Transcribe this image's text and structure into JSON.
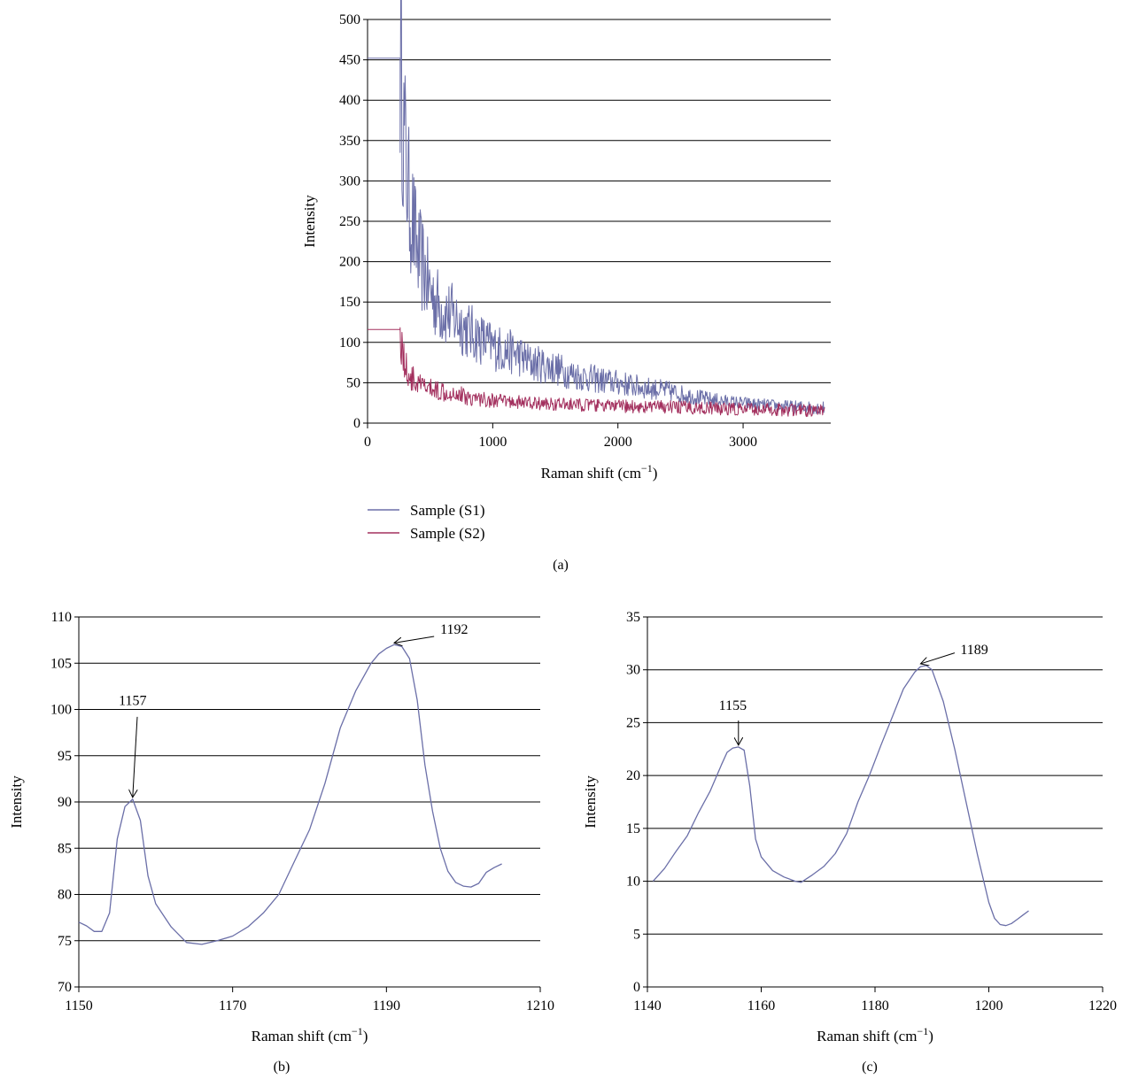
{
  "chart_data": [
    {
      "id": "a",
      "type": "line",
      "panel_label": "(a)",
      "xlabel": "Raman shift (cm",
      "xlabel_sup": "−1",
      "xlabel_suffix": ")",
      "ylabel": "Intensity",
      "xlim": [
        0,
        3700
      ],
      "ylim": [
        0,
        500
      ],
      "xticks": [
        0,
        1000,
        2000,
        3000
      ],
      "yticks": [
        0,
        50,
        100,
        150,
        200,
        250,
        300,
        350,
        400,
        450,
        500
      ],
      "grid": true,
      "legend_position": "below",
      "series": [
        {
          "name": "Sample (S1)",
          "color": "#6b6fa8",
          "x": [
            0,
            240,
            260,
            275,
            290,
            310,
            330,
            360,
            400,
            450,
            500,
            550,
            600,
            700,
            800,
            900,
            1000,
            1100,
            1200,
            1300,
            1400,
            1500,
            1600,
            1700,
            1800,
            1900,
            2000,
            2100,
            2200,
            2300,
            2400,
            2500,
            2600,
            2700,
            2800,
            2900,
            3000,
            3100,
            3200,
            3300,
            3400,
            3500,
            3600,
            3650
          ],
          "y": [
            452,
            452,
            452,
            410,
            360,
            320,
            280,
            250,
            210,
            190,
            165,
            150,
            140,
            130,
            115,
            105,
            95,
            90,
            85,
            75,
            72,
            68,
            62,
            58,
            55,
            52,
            50,
            47,
            44,
            42,
            40,
            36,
            33,
            30,
            28,
            26,
            25,
            23,
            22,
            21,
            20,
            20,
            19,
            19
          ]
        },
        {
          "name": "Sample (S2)",
          "color": "#a3305e",
          "x": [
            0,
            240,
            260,
            280,
            300,
            350,
            400,
            500,
            600,
            700,
            800,
            900,
            1000,
            1200,
            1400,
            1600,
            1800,
            2000,
            2200,
            2400,
            2600,
            2800,
            3000,
            3200,
            3400,
            3600,
            3650
          ],
          "y": [
            116,
            116,
            116,
            90,
            70,
            55,
            48,
            42,
            40,
            38,
            32,
            30,
            28,
            26,
            24,
            23,
            22,
            21,
            20,
            20,
            19,
            18,
            17,
            17,
            16,
            15,
            15
          ]
        }
      ]
    },
    {
      "id": "b",
      "type": "line",
      "panel_label": "(b)",
      "xlabel": "Raman shift (cm",
      "xlabel_sup": "−1",
      "xlabel_suffix": ")",
      "ylabel": "Intensity",
      "xlim": [
        1150,
        1210
      ],
      "ylim": [
        70,
        110
      ],
      "xticks": [
        1150,
        1170,
        1190,
        1210
      ],
      "yticks": [
        70,
        75,
        80,
        85,
        90,
        95,
        100,
        105,
        110
      ],
      "grid": true,
      "series": [
        {
          "color": "#6b6fa8",
          "x": [
            1150,
            1151,
            1152,
            1153,
            1154,
            1155,
            1156,
            1157,
            1158,
            1159,
            1160,
            1162,
            1164,
            1166,
            1168,
            1170,
            1172,
            1174,
            1176,
            1178,
            1180,
            1182,
            1184,
            1186,
            1188,
            1189,
            1190,
            1191,
            1192,
            1193,
            1194,
            1195,
            1196,
            1197,
            1198,
            1199,
            1200,
            1201,
            1202,
            1203,
            1204,
            1205
          ],
          "y": [
            77,
            76.6,
            76,
            76,
            78,
            86,
            89.5,
            90.3,
            88,
            82,
            79,
            76.5,
            74.8,
            74.6,
            75,
            75.5,
            76.5,
            78,
            80,
            83.5,
            87,
            92,
            98,
            102,
            105,
            106,
            106.6,
            107,
            106.8,
            105.5,
            101,
            94,
            89,
            85,
            82.5,
            81.3,
            80.9,
            80.8,
            81.2,
            82.4,
            82.9,
            83.3
          ]
        }
      ],
      "annotations": [
        {
          "text": "1157",
          "x": 1157,
          "y": 90.3
        },
        {
          "text": "1192",
          "x": 1191,
          "y": 107
        }
      ]
    },
    {
      "id": "c",
      "type": "line",
      "panel_label": "(c)",
      "xlabel": "Raman shift (cm",
      "xlabel_sup": "−1",
      "xlabel_suffix": ")",
      "ylabel": "Intensity",
      "xlim": [
        1140,
        1220
      ],
      "ylim": [
        0,
        35
      ],
      "xticks": [
        1140,
        1160,
        1180,
        1200,
        1220
      ],
      "yticks": [
        0,
        5,
        10,
        15,
        20,
        25,
        30,
        35
      ],
      "grid": true,
      "series": [
        {
          "color": "#6b6fa8",
          "x": [
            1141,
            1143,
            1145,
            1147,
            1149,
            1151,
            1153,
            1154,
            1155,
            1156,
            1157,
            1158,
            1159,
            1160,
            1162,
            1164,
            1166,
            1167,
            1169,
            1171,
            1173,
            1175,
            1177,
            1179,
            1181,
            1183,
            1185,
            1187,
            1188,
            1189,
            1190,
            1192,
            1194,
            1196,
            1198,
            1200,
            1201,
            1202,
            1203,
            1204,
            1205,
            1206,
            1207
          ],
          "y": [
            10,
            11.2,
            12.8,
            14.3,
            16.5,
            18.5,
            21,
            22.2,
            22.6,
            22.7,
            22.4,
            19,
            14,
            12.3,
            11,
            10.4,
            10,
            9.9,
            10.6,
            11.4,
            12.6,
            14.5,
            17.5,
            20,
            22.8,
            25.5,
            28.2,
            29.8,
            30.3,
            30.4,
            30,
            27,
            22.5,
            17.5,
            12.5,
            8,
            6.5,
            5.9,
            5.8,
            6,
            6.4,
            6.8,
            7.2
          ]
        }
      ],
      "annotations": [
        {
          "text": "1155",
          "x": 1156,
          "y": 22.7
        },
        {
          "text": "1189",
          "x": 1188,
          "y": 30.4
        }
      ]
    }
  ]
}
